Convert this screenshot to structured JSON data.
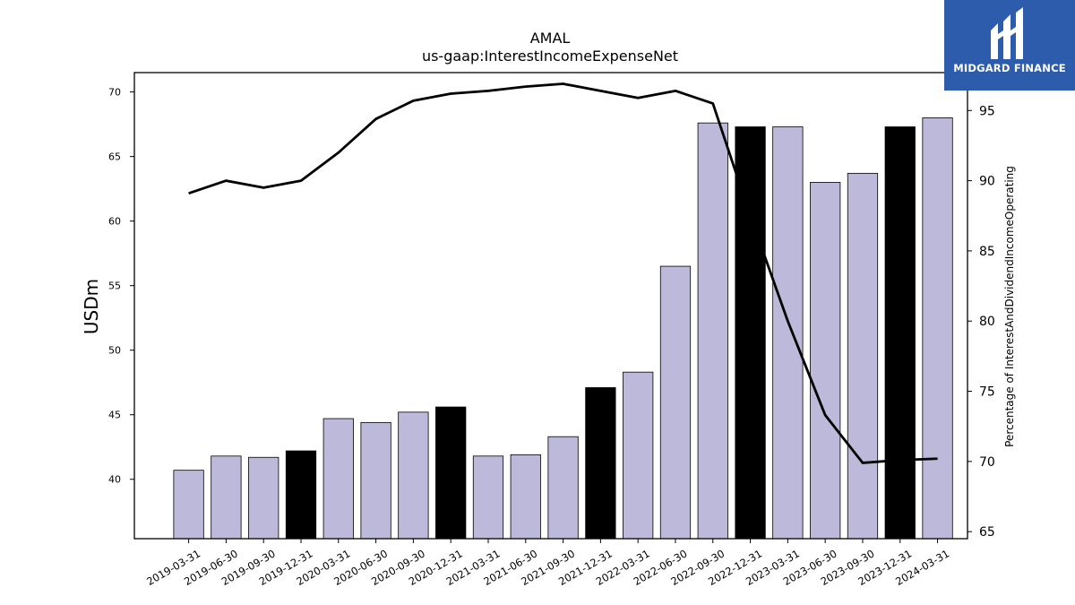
{
  "chart_data": {
    "type": "bar",
    "title": "AMAL",
    "subtitle": "us-gaap:InterestIncomeExpenseNet",
    "ylabel": "USDm",
    "y2label": "Percentage of InterestAndDividendIncomeOperating",
    "ylim": [
      35.4,
      71.5
    ],
    "y2lim": [
      64.5,
      97.7
    ],
    "yticks": [
      40,
      45,
      50,
      55,
      60,
      65,
      70
    ],
    "y2ticks": [
      65,
      70,
      75,
      80,
      85,
      90,
      95
    ],
    "categories": [
      "2019-03-31",
      "2019-06-30",
      "2019-09-30",
      "2019-12-31",
      "2020-03-31",
      "2020-06-30",
      "2020-09-30",
      "2020-12-31",
      "2021-03-31",
      "2021-06-30",
      "2021-09-30",
      "2021-12-31",
      "2022-03-31",
      "2022-06-30",
      "2022-09-30",
      "2022-12-31",
      "2023-03-31",
      "2023-06-30",
      "2023-09-30",
      "2023-12-31",
      "2024-03-31"
    ],
    "values": [
      40.7,
      41.8,
      41.7,
      42.2,
      44.7,
      44.4,
      45.2,
      45.6,
      41.8,
      41.9,
      43.3,
      47.1,
      48.3,
      56.5,
      67.6,
      67.3,
      67.3,
      63.0,
      63.7,
      67.3,
      68.0
    ],
    "highlighted": [
      false,
      false,
      false,
      true,
      false,
      false,
      false,
      true,
      false,
      false,
      false,
      true,
      false,
      false,
      false,
      true,
      false,
      false,
      false,
      true,
      false
    ],
    "line_values": [
      89.1,
      90.0,
      89.5,
      90.0,
      92.0,
      94.4,
      95.7,
      96.2,
      96.4,
      96.7,
      96.9,
      96.4,
      95.9,
      96.4,
      95.5,
      87.5,
      80.0,
      73.3,
      69.9,
      70.1,
      70.2
    ],
    "bar_color": "#bcb9da",
    "highlight_color": "#000000",
    "line_color": "#000000",
    "grid": false
  },
  "logo": {
    "text": "MIDGARD FINANCE",
    "background": "#2e5cad"
  }
}
